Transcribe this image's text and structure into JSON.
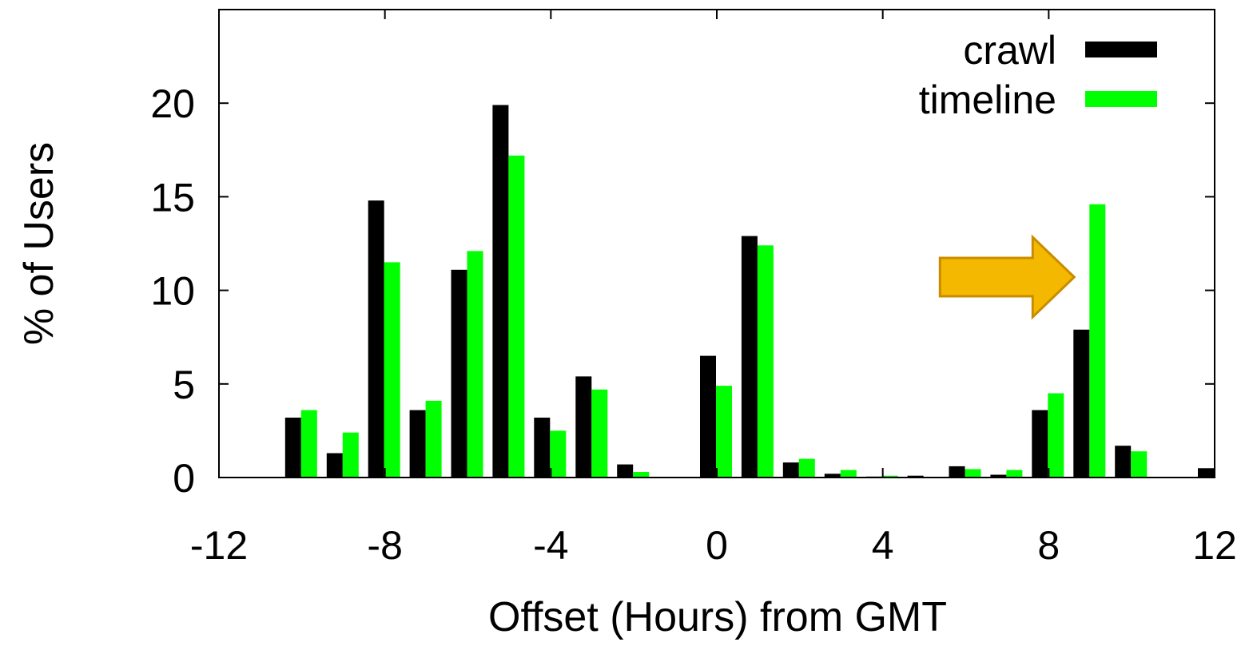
{
  "chart_data": {
    "type": "bar",
    "title": "",
    "xlabel": "Offset (Hours) from GMT",
    "ylabel": "% of Users",
    "xlim": [
      -12,
      12
    ],
    "ylim": [
      0,
      25
    ],
    "xticks": [
      "-12",
      "-8",
      "-4",
      "0",
      "4",
      "8",
      "12"
    ],
    "xtick_values": [
      -12,
      -8,
      -4,
      0,
      4,
      8,
      12
    ],
    "yticks": [
      "0",
      "5",
      "10",
      "15",
      "20"
    ],
    "ytick_values": [
      0,
      5,
      10,
      15,
      20
    ],
    "grid": false,
    "legend_position": "top-right",
    "x": [
      -11,
      -10,
      -9,
      -8,
      -7,
      -6,
      -5,
      -4,
      -3,
      -2,
      -1,
      0,
      1,
      2,
      3,
      4,
      5,
      6,
      7,
      8,
      9,
      10,
      11,
      12
    ],
    "series": [
      {
        "name": "crawl",
        "color": "#000000",
        "values": [
          0.02,
          3.2,
          1.3,
          14.8,
          3.6,
          11.1,
          19.9,
          3.2,
          5.4,
          0.7,
          0.0,
          6.5,
          12.9,
          0.8,
          0.2,
          0.05,
          0.1,
          0.6,
          0.15,
          3.6,
          7.9,
          1.7,
          0.0,
          0.5
        ]
      },
      {
        "name": "timeline",
        "color": "#00ff00",
        "values": [
          0.0,
          3.6,
          2.4,
          11.5,
          4.1,
          12.1,
          17.2,
          2.5,
          4.7,
          0.3,
          0.0,
          4.9,
          12.4,
          1.0,
          0.4,
          0.1,
          0.0,
          0.45,
          0.4,
          4.5,
          14.6,
          1.4,
          0.0,
          0.0
        ]
      }
    ],
    "annotations": [
      {
        "type": "arrow",
        "shape": "block-arrow",
        "direction": "right",
        "points_to_x": 9,
        "color": "#f5b800",
        "stroke": "#c98c00"
      }
    ]
  }
}
